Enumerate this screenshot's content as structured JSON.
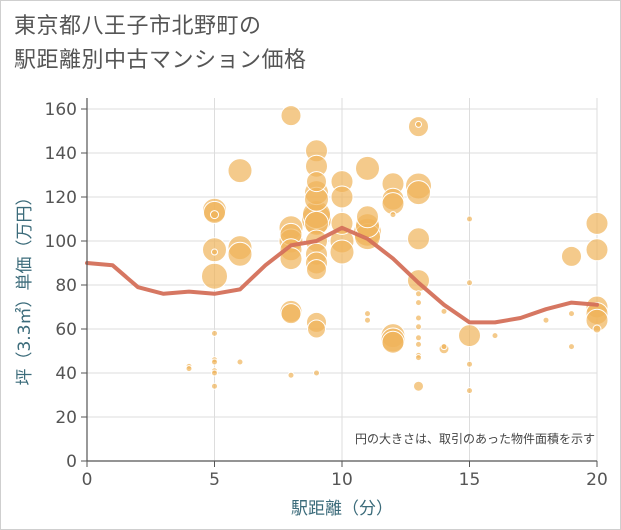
{
  "chart_data": {
    "type": "scatter",
    "title_line1": "東京都八王子市北野町の",
    "title_line2": "駅距離別中古マンション価格",
    "xlabel": "駅距離（分）",
    "ylabel": "坪（3.3㎡）単価（万円）",
    "xlim": [
      0,
      20
    ],
    "ylim": [
      0,
      165
    ],
    "x_ticks": [
      "0",
      "5",
      "10",
      "15",
      "20"
    ],
    "y_ticks": [
      "0",
      "20",
      "40",
      "60",
      "80",
      "100",
      "120",
      "140",
      "160"
    ],
    "grid": true,
    "note": "円の大きさは、取引のあった物件面積を示す",
    "colors": {
      "bubble": "#f0b45a",
      "line": "#d4705a",
      "grid": "#dddddd",
      "axis": "#555555"
    },
    "trend_line": {
      "x": [
        0,
        1,
        2,
        3,
        4,
        5,
        6,
        7,
        8,
        9,
        10,
        11,
        12,
        13,
        14,
        15,
        16,
        17,
        18,
        19,
        20
      ],
      "y": [
        90,
        89,
        79,
        76,
        77,
        76,
        78,
        89,
        98,
        100,
        106,
        101,
        92,
        81,
        71,
        63,
        63,
        65,
        69,
        72,
        71
      ]
    },
    "points": [
      {
        "x": 4,
        "y": 43,
        "s": 3
      },
      {
        "x": 4,
        "y": 42,
        "s": 3
      },
      {
        "x": 5,
        "y": 114,
        "s": 12
      },
      {
        "x": 5,
        "y": 113,
        "s": 11
      },
      {
        "x": 5,
        "y": 112,
        "s": 4
      },
      {
        "x": 5,
        "y": 96,
        "s": 12
      },
      {
        "x": 5,
        "y": 84,
        "s": 13
      },
      {
        "x": 5,
        "y": 95,
        "s": 3
      },
      {
        "x": 5,
        "y": 58,
        "s": 3
      },
      {
        "x": 5,
        "y": 46,
        "s": 3
      },
      {
        "x": 5,
        "y": 45,
        "s": 3
      },
      {
        "x": 5,
        "y": 41,
        "s": 3
      },
      {
        "x": 5,
        "y": 40,
        "s": 3
      },
      {
        "x": 5,
        "y": 34,
        "s": 3
      },
      {
        "x": 6,
        "y": 132,
        "s": 12
      },
      {
        "x": 6,
        "y": 97,
        "s": 12
      },
      {
        "x": 6,
        "y": 94,
        "s": 12
      },
      {
        "x": 6,
        "y": 45,
        "s": 3
      },
      {
        "x": 8,
        "y": 157,
        "s": 10
      },
      {
        "x": 8,
        "y": 106,
        "s": 12
      },
      {
        "x": 8,
        "y": 103,
        "s": 11
      },
      {
        "x": 8,
        "y": 100,
        "s": 12
      },
      {
        "x": 8,
        "y": 96,
        "s": 11
      },
      {
        "x": 8,
        "y": 92,
        "s": 11
      },
      {
        "x": 8,
        "y": 68,
        "s": 11
      },
      {
        "x": 8,
        "y": 67,
        "s": 10
      },
      {
        "x": 8,
        "y": 39,
        "s": 3
      },
      {
        "x": 9,
        "y": 141,
        "s": 11
      },
      {
        "x": 9,
        "y": 134,
        "s": 11
      },
      {
        "x": 9,
        "y": 127,
        "s": 10
      },
      {
        "x": 9,
        "y": 122,
        "s": 12
      },
      {
        "x": 9,
        "y": 119,
        "s": 12
      },
      {
        "x": 9,
        "y": 112,
        "s": 14
      },
      {
        "x": 9,
        "y": 110,
        "s": 15
      },
      {
        "x": 9,
        "y": 108,
        "s": 12
      },
      {
        "x": 9,
        "y": 100,
        "s": 11
      },
      {
        "x": 9,
        "y": 94,
        "s": 11
      },
      {
        "x": 9,
        "y": 90,
        "s": 11
      },
      {
        "x": 9,
        "y": 87,
        "s": 10
      },
      {
        "x": 9,
        "y": 63,
        "s": 10
      },
      {
        "x": 9,
        "y": 60,
        "s": 9
      },
      {
        "x": 9,
        "y": 40,
        "s": 3
      },
      {
        "x": 10,
        "y": 127,
        "s": 11
      },
      {
        "x": 10,
        "y": 120,
        "s": 11
      },
      {
        "x": 10,
        "y": 108,
        "s": 11
      },
      {
        "x": 10,
        "y": 100,
        "s": 12
      },
      {
        "x": 10,
        "y": 95,
        "s": 12
      },
      {
        "x": 11,
        "y": 133,
        "s": 12
      },
      {
        "x": 11,
        "y": 111,
        "s": 11
      },
      {
        "x": 11,
        "y": 107,
        "s": 12
      },
      {
        "x": 11,
        "y": 104,
        "s": 14
      },
      {
        "x": 11,
        "y": 102,
        "s": 13
      },
      {
        "x": 11,
        "y": 67,
        "s": 3
      },
      {
        "x": 11,
        "y": 64,
        "s": 3
      },
      {
        "x": 12,
        "y": 126,
        "s": 11
      },
      {
        "x": 12,
        "y": 119,
        "s": 11
      },
      {
        "x": 12,
        "y": 117,
        "s": 11
      },
      {
        "x": 12,
        "y": 112,
        "s": 3
      },
      {
        "x": 12,
        "y": 57,
        "s": 12
      },
      {
        "x": 12,
        "y": 55,
        "s": 12
      },
      {
        "x": 12,
        "y": 54,
        "s": 11
      },
      {
        "x": 13,
        "y": 152,
        "s": 10
      },
      {
        "x": 13,
        "y": 153,
        "s": 3
      },
      {
        "x": 13,
        "y": 125,
        "s": 13
      },
      {
        "x": 13,
        "y": 122,
        "s": 12
      },
      {
        "x": 13,
        "y": 101,
        "s": 11
      },
      {
        "x": 13,
        "y": 82,
        "s": 11
      },
      {
        "x": 13,
        "y": 76,
        "s": 3
      },
      {
        "x": 13,
        "y": 72,
        "s": 3
      },
      {
        "x": 13,
        "y": 65,
        "s": 3
      },
      {
        "x": 13,
        "y": 61,
        "s": 3
      },
      {
        "x": 13,
        "y": 56,
        "s": 3
      },
      {
        "x": 13,
        "y": 53,
        "s": 3
      },
      {
        "x": 13,
        "y": 48,
        "s": 3
      },
      {
        "x": 13,
        "y": 47,
        "s": 3
      },
      {
        "x": 13,
        "y": 34,
        "s": 5
      },
      {
        "x": 14,
        "y": 68,
        "s": 3
      },
      {
        "x": 14,
        "y": 52,
        "s": 3
      },
      {
        "x": 14,
        "y": 51,
        "s": 5
      },
      {
        "x": 15,
        "y": 110,
        "s": 3
      },
      {
        "x": 15,
        "y": 81,
        "s": 3
      },
      {
        "x": 15,
        "y": 57,
        "s": 11
      },
      {
        "x": 15,
        "y": 44,
        "s": 3
      },
      {
        "x": 15,
        "y": 32,
        "s": 3
      },
      {
        "x": 16,
        "y": 57,
        "s": 3
      },
      {
        "x": 18,
        "y": 64,
        "s": 3
      },
      {
        "x": 19,
        "y": 93,
        "s": 10
      },
      {
        "x": 19,
        "y": 67,
        "s": 3
      },
      {
        "x": 19,
        "y": 52,
        "s": 3
      },
      {
        "x": 20,
        "y": 108,
        "s": 11
      },
      {
        "x": 20,
        "y": 96,
        "s": 11
      },
      {
        "x": 20,
        "y": 70,
        "s": 11
      },
      {
        "x": 20,
        "y": 67,
        "s": 11
      },
      {
        "x": 20,
        "y": 64,
        "s": 11
      },
      {
        "x": 20,
        "y": 60,
        "s": 4
      }
    ]
  }
}
